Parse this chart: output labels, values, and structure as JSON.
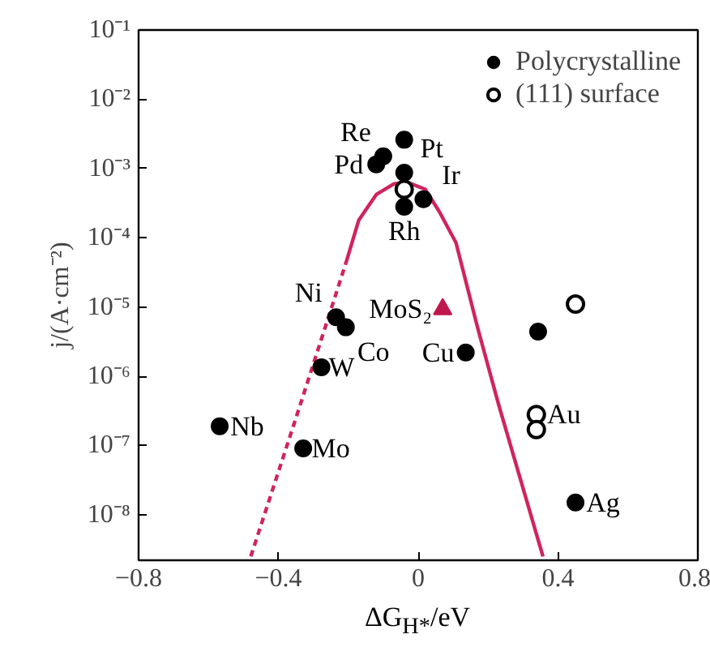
{
  "chart_data": {
    "type": "scatter",
    "xlabel": "ΔG$_{H*}$/eV",
    "ylabel": "j/(A·cm⁻²)",
    "xlim": [
      -0.8,
      0.8
    ],
    "ylim": [
      2.2e-09,
      0.1
    ],
    "log": "y",
    "xticks": [
      {
        "value": -0.8,
        "label": "−0.8"
      },
      {
        "value": -0.4,
        "label": "−0.4"
      },
      0,
      0.4,
      0.8
    ],
    "yticks": [
      {
        "value": 0.1,
        "label": "10⁻¹"
      },
      {
        "value": 0.01,
        "label": "10⁻²"
      },
      {
        "value": 0.001,
        "label": "10⁻³"
      },
      {
        "value": 0.0001,
        "label": "10⁻⁴"
      },
      {
        "value": 1e-05,
        "label": "10⁻⁵"
      },
      {
        "value": 1e-06,
        "label": "10⁻⁶"
      },
      {
        "value": 1e-07,
        "label": "10⁻⁷"
      },
      {
        "value": 1e-08,
        "label": "10⁻⁸"
      }
    ],
    "grid": false,
    "legend": "top right",
    "series": [
      {
        "type": "line",
        "color": "#d0245e",
        "line_style": "solid",
        "x": [
          -0.207,
          -0.17,
          -0.12,
          -0.07,
          -0.03,
          0.02,
          0.06,
          0.108,
          0.17,
          0.23,
          0.357
        ],
        "values": [
          4.3e-05,
          0.00018,
          0.00042,
          0.0006,
          0.00063,
          0.0005,
          0.00024,
          8.5e-05,
          5e-06,
          3.9e-07,
          2.5e-09
        ]
      },
      {
        "type": "line",
        "color": "#d0245e",
        "line_style": "dashed",
        "x": [
          -0.479,
          -0.352,
          -0.207
        ],
        "values": [
          2.5e-09,
          2.3e-07,
          4.3e-05
        ]
      },
      {
        "name": "Polycrystalline",
        "color": "#000000",
        "marker": "circle",
        "x": [
          -0.04,
          -0.1,
          -0.12,
          -0.04,
          0.015,
          -0.04,
          -0.235,
          -0.207,
          -0.277,
          -0.568,
          -0.329,
          0.136,
          0.343,
          0.45
        ],
        "values": [
          0.0026,
          0.0015,
          0.00115,
          0.00087,
          0.00036,
          0.00028,
          7.1e-06,
          5.1e-06,
          1.35e-06,
          1.9e-07,
          9.1e-08,
          2.2e-06,
          4.4e-06,
          1.5e-08
        ]
      },
      {
        "name": "(111) surface",
        "color": "#000000",
        "marker": "circle_open",
        "x": [
          -0.04,
          0.45,
          0.338,
          0.338
        ],
        "values": [
          0.0005,
          1.1e-05,
          2.8e-07,
          1.7e-07
        ]
      },
      {
        "color": "#c0184e",
        "marker": "triangle",
        "x": [
          0.07
        ],
        "values": [
          9.3e-06
        ]
      }
    ],
    "annotations": [
      {
        "text": "Re",
        "x": -0.1,
        "y": 0.0015
      },
      {
        "text": "Pd",
        "x": -0.12,
        "y": 0.00115
      },
      {
        "text": "Pt",
        "x": -0.04,
        "y": 0.00087
      },
      {
        "text": "Ir",
        "x": 0.015,
        "y": 0.00036
      },
      {
        "text": "Rh",
        "x": -0.04,
        "y": 0.00028
      },
      {
        "text": "MoS₂",
        "x": 0.07,
        "y": 9.3e-06
      },
      {
        "text": "Ni",
        "x": -0.235,
        "y": 7.1e-06
      },
      {
        "text": "Co",
        "x": -0.207,
        "y": 5.1e-06
      },
      {
        "text": "W",
        "x": -0.277,
        "y": 1.35e-06
      },
      {
        "text": "Cu",
        "x": 0.136,
        "y": 2.2e-06
      },
      {
        "text": "Au",
        "x": 0.338,
        "y": 2.8e-07
      },
      {
        "text": "Nb",
        "x": -0.568,
        "y": 1.9e-07
      },
      {
        "text": "Mo",
        "x": -0.329,
        "y": 9.1e-08
      },
      {
        "text": "Ag",
        "x": 0.45,
        "y": 1.5e-08
      }
    ]
  }
}
